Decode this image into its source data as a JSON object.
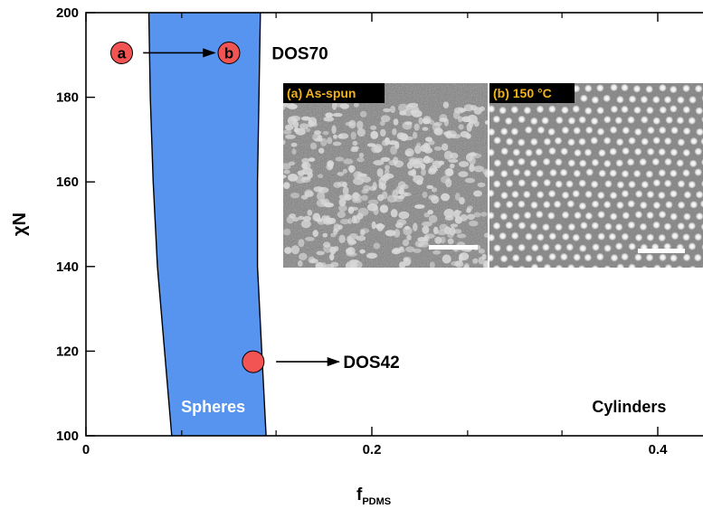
{
  "chart_data": {
    "type": "area",
    "xlabel_main": "f",
    "xlabel_sub": "PDMS",
    "ylabel": "χN",
    "xlim": [
      0,
      0.43
    ],
    "ylim": [
      100,
      200
    ],
    "x_ticks": [
      {
        "value": 0,
        "label": "0"
      },
      {
        "value": 0.2,
        "label": "0.2"
      },
      {
        "value": 0.4,
        "label": "0.4"
      }
    ],
    "x_minor_ticks": [
      0.067,
      0.133,
      0.267,
      0.333
    ],
    "y_ticks": [
      {
        "value": 100,
        "label": "100"
      },
      {
        "value": 120,
        "label": "120"
      },
      {
        "value": 140,
        "label": "140"
      },
      {
        "value": 160,
        "label": "160"
      },
      {
        "value": 180,
        "label": "180"
      },
      {
        "value": 200,
        "label": "200"
      }
    ],
    "boundaries": [
      {
        "name": "left",
        "points": [
          [
            0.06,
            100
          ],
          [
            0.055,
            120
          ],
          [
            0.05,
            140
          ],
          [
            0.047,
            160
          ],
          [
            0.045,
            180
          ],
          [
            0.044,
            200
          ]
        ]
      },
      {
        "name": "right",
        "points": [
          [
            0.126,
            100
          ],
          [
            0.123,
            120
          ],
          [
            0.12,
            140
          ],
          [
            0.12,
            160
          ],
          [
            0.121,
            180
          ],
          [
            0.122,
            200
          ]
        ]
      }
    ],
    "region_color": "#5694f0",
    "region_labels": [
      {
        "text": "Spheres",
        "x": 0.089,
        "y": 107,
        "color": "#ffffff"
      },
      {
        "text": "Cylinders",
        "x": 0.38,
        "y": 107,
        "color": "#000000"
      }
    ],
    "points": [
      {
        "label": "a",
        "x": 0.025,
        "y": 190.5
      },
      {
        "label": "b",
        "x": 0.1,
        "y": 190.5
      },
      {
        "label": "",
        "x": 0.117,
        "y": 117.5
      }
    ],
    "point_color": "#f25454",
    "arrows": [
      {
        "from": [
          0.04,
          190.5
        ],
        "to": [
          0.09,
          190.5
        ]
      },
      {
        "from": [
          0.133,
          117.5
        ],
        "to": [
          0.177,
          117.5
        ]
      }
    ],
    "annotations": [
      {
        "text": "DOS70",
        "x": 0.13,
        "y": 190.5
      },
      {
        "text": "DOS42",
        "x": 0.18,
        "y": 117.5
      }
    ],
    "insets": [
      {
        "label": "(a) As-spun",
        "pattern": "disordered"
      },
      {
        "label": "(b) 150 °C",
        "pattern": "hexagonal"
      }
    ]
  }
}
